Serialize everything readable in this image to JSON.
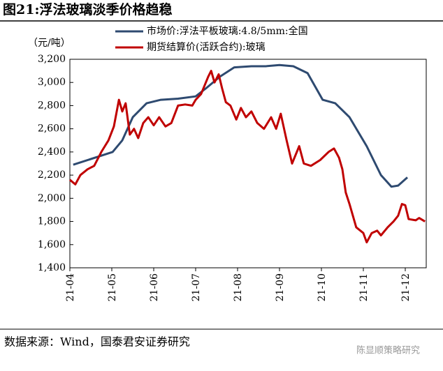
{
  "chart_data": {
    "type": "line",
    "title": "图21:浮法玻璃淡季价格趋稳",
    "y_label": "（元/吨）",
    "source": "数据来源：Wind，国泰君安证券研究",
    "watermark": "陈显顺策略研究",
    "xlim": [
      4,
      12.5
    ],
    "xticks": [
      {
        "value": 4,
        "label": "21-04"
      },
      {
        "value": 5,
        "label": "21-05"
      },
      {
        "value": 6,
        "label": "21-06"
      },
      {
        "value": 7,
        "label": "21-07"
      },
      {
        "value": 8,
        "label": "21-08"
      },
      {
        "value": 9,
        "label": "21-09"
      },
      {
        "value": 10,
        "label": "21-10"
      },
      {
        "value": 11,
        "label": "21-11"
      },
      {
        "value": 12,
        "label": "21-12"
      }
    ],
    "ylim": [
      1400,
      3200
    ],
    "yticks": [
      {
        "value": 1400,
        "label": "1,400"
      },
      {
        "value": 1600,
        "label": "1,600"
      },
      {
        "value": 1800,
        "label": "1,800"
      },
      {
        "value": 2000,
        "label": "2,000"
      },
      {
        "value": 2200,
        "label": "2,200"
      },
      {
        "value": 2400,
        "label": "2,400"
      },
      {
        "value": 2600,
        "label": "2,600"
      },
      {
        "value": 2800,
        "label": "2,800"
      },
      {
        "value": 3000,
        "label": "3,000"
      },
      {
        "value": 3200,
        "label": "3,200"
      }
    ],
    "series": [
      {
        "name": "市场价:浮法平板玻璃:4.8/5mm:全国",
        "color": "#2e4a70",
        "x": [
          4.08,
          5.02,
          5.25,
          5.5,
          5.83,
          6.17,
          6.58,
          7.0,
          7.25,
          7.58,
          7.92,
          8.33,
          8.67,
          9.0,
          9.33,
          9.67,
          10.03,
          10.33,
          10.67,
          11.08,
          11.42,
          11.67,
          11.83,
          12.05
        ],
        "values": [
          2290,
          2400,
          2500,
          2700,
          2820,
          2850,
          2860,
          2880,
          2950,
          3050,
          3130,
          3140,
          3140,
          3150,
          3140,
          3080,
          2850,
          2820,
          2700,
          2450,
          2200,
          2100,
          2110,
          2180
        ]
      },
      {
        "name": "期货结算价(活跃合约):玻璃",
        "color": "#c00000",
        "x": [
          4.0,
          4.13,
          4.25,
          4.42,
          4.58,
          4.75,
          4.92,
          5.05,
          5.17,
          5.25,
          5.33,
          5.43,
          5.53,
          5.63,
          5.75,
          5.87,
          6.0,
          6.13,
          6.28,
          6.42,
          6.58,
          6.75,
          6.92,
          7.0,
          7.13,
          7.3,
          7.37,
          7.45,
          7.55,
          7.63,
          7.72,
          7.83,
          7.97,
          8.08,
          8.2,
          8.33,
          8.47,
          8.63,
          8.8,
          8.92,
          9.03,
          9.17,
          9.3,
          9.47,
          9.58,
          9.75,
          9.97,
          10.17,
          10.3,
          10.42,
          10.5,
          10.58,
          10.67,
          10.83,
          11.0,
          11.08,
          11.2,
          11.33,
          11.42,
          11.58,
          11.72,
          11.83,
          11.92,
          12.0,
          12.08,
          12.25,
          12.33,
          12.47
        ],
        "values": [
          2160,
          2120,
          2200,
          2250,
          2280,
          2400,
          2500,
          2620,
          2850,
          2750,
          2820,
          2550,
          2600,
          2520,
          2650,
          2700,
          2630,
          2700,
          2620,
          2650,
          2800,
          2810,
          2800,
          2850,
          2900,
          3050,
          3100,
          3000,
          3070,
          2950,
          2830,
          2800,
          2680,
          2780,
          2700,
          2750,
          2650,
          2600,
          2700,
          2600,
          2730,
          2500,
          2300,
          2450,
          2300,
          2280,
          2330,
          2400,
          2430,
          2350,
          2250,
          2050,
          1950,
          1750,
          1700,
          1620,
          1700,
          1720,
          1680,
          1750,
          1800,
          1850,
          1950,
          1940,
          1820,
          1810,
          1830,
          1800
        ]
      }
    ]
  }
}
